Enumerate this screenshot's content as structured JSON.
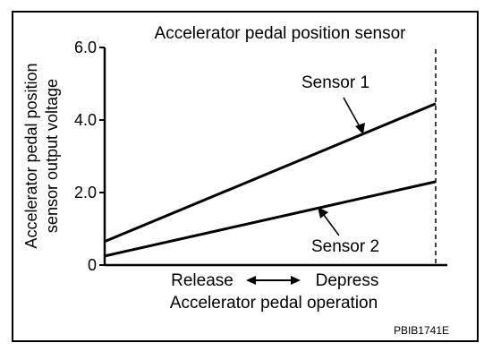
{
  "chart_data": {
    "type": "line",
    "title": "Accelerator pedal position sensor",
    "ylabel": [
      "Accelerator pedal position",
      "sensor output voltage"
    ],
    "xlabel": "Accelerator pedal operation",
    "x_ends": {
      "left": "Release",
      "right": "Depress"
    },
    "x": [
      0,
      1
    ],
    "ylim": [
      0,
      6.0
    ],
    "y_ticks": [
      "0",
      "2.0",
      "4.0",
      "6.0"
    ],
    "y_tick_values": [
      0,
      2.0,
      4.0,
      6.0
    ],
    "series": [
      {
        "name": "Sensor 1",
        "values": [
          0.65,
          4.45
        ]
      },
      {
        "name": "Sensor 2",
        "values": [
          0.25,
          2.3
        ]
      }
    ],
    "annotations": {
      "marker_line": "full depress position (dashed)"
    },
    "code": "PBIB1741E",
    "colors": {
      "line": "#000000",
      "background": "#ffffff"
    }
  }
}
